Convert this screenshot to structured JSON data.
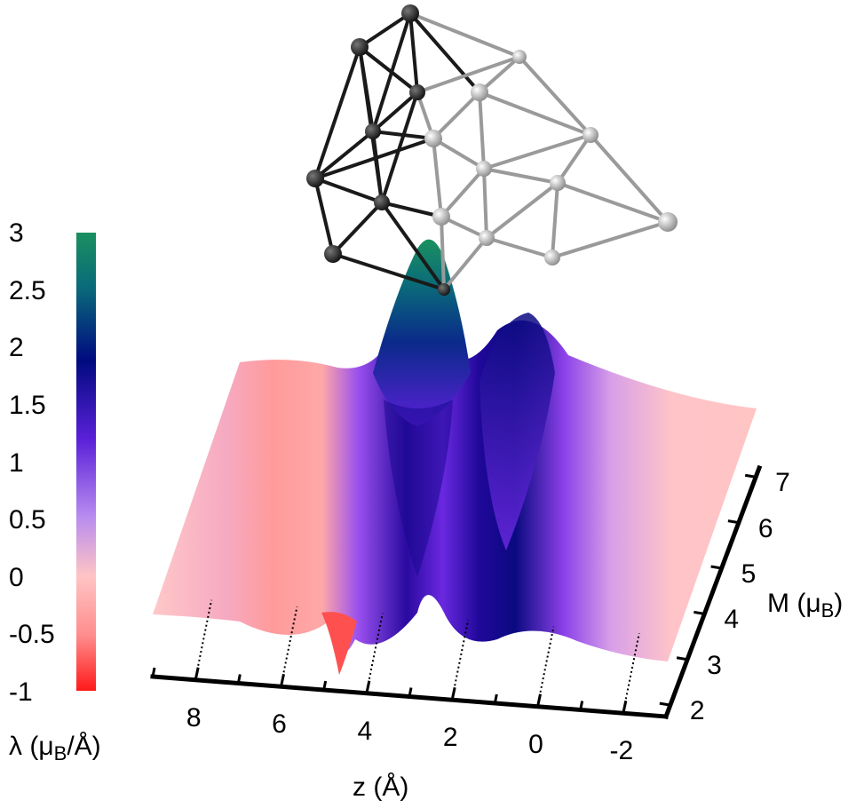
{
  "chart_data": {
    "type": "surface3d",
    "description_of_marks": "3D surface of torque density lambda over position z and magnetic moment M, with a metal cluster drawn above",
    "x_axis": {
      "label_main": "z (Å)",
      "ticks": [
        "8",
        "6",
        "4",
        "2",
        "0",
        "-2"
      ],
      "values": [
        8,
        6,
        4,
        2,
        0,
        -2
      ]
    },
    "y_axis": {
      "label_main": "M (μ",
      "label_sub": "B",
      "label_close": ")",
      "ticks": [
        "2",
        "3",
        "4",
        "5",
        "6",
        "7"
      ],
      "values": [
        2,
        3,
        4,
        5,
        6,
        7
      ]
    },
    "colorbar": {
      "label_main": "λ (μ",
      "label_sub": "B",
      "label_close": "/Å)",
      "ticks": [
        "3",
        "2.5",
        "2",
        "1.5",
        "1",
        "0.5",
        "0",
        "-0.5",
        "-1"
      ],
      "values": [
        3,
        2.5,
        2,
        1.5,
        1,
        0.5,
        0,
        -0.5,
        -1
      ],
      "range": [
        -1,
        3
      ],
      "colors": {
        "min": "#ff1a1a",
        "neg": "#ff8c8c",
        "zero": "#ffc4c4",
        "low": "#a060f0",
        "mid": "#6020d8",
        "high": "#000a80",
        "top": "#1a9060"
      }
    },
    "surface": {
      "peaks": [
        {
          "z": 3.8,
          "lambda": 3.0,
          "note": "main peak under cluster tip"
        },
        {
          "z": 1.0,
          "lambda": 1.5
        },
        {
          "z": 4.8,
          "lambda": -1.0,
          "note": "negative dip"
        }
      ]
    }
  }
}
